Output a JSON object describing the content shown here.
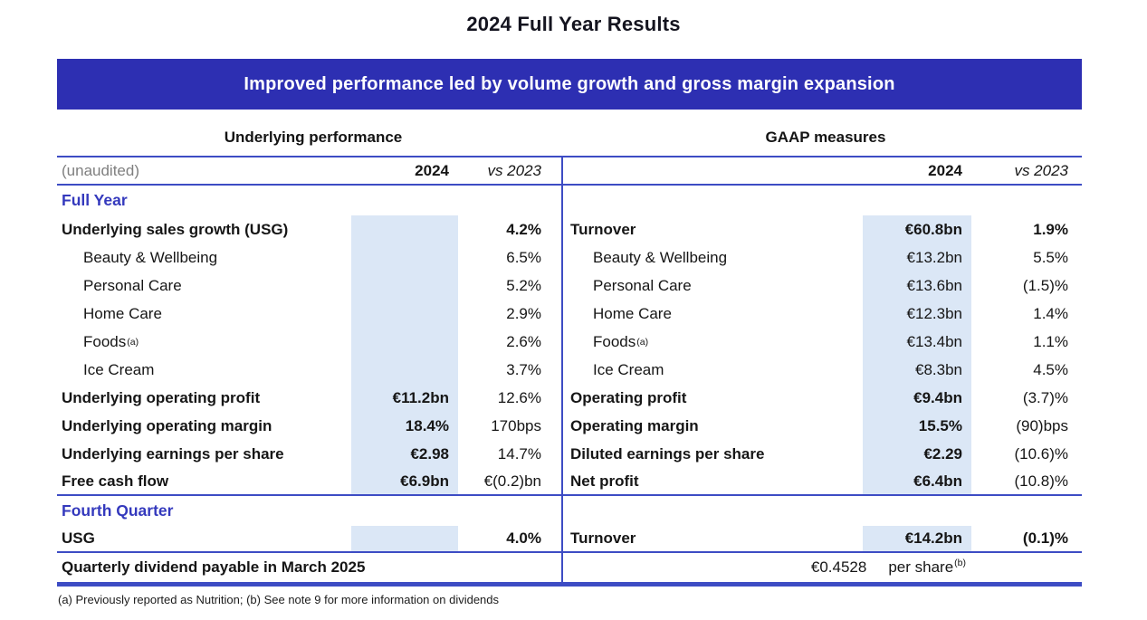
{
  "title": "2024 Full Year Results",
  "banner": {
    "text": "Improved performance led by volume growth and gross margin expansion"
  },
  "colors": {
    "banner_bg": "#2d2fb2",
    "banner_fg": "#ffffff",
    "rule_blue": "#3d4cc4",
    "section_blue": "#3439bd",
    "shade_blue": "#dbe7f6",
    "muted_gray": "#7f7f7f"
  },
  "panel_headings": {
    "left": "Underlying performance",
    "right": "GAAP measures"
  },
  "header_row": {
    "unaudited": "(unaudited)",
    "year": "2024",
    "vs": "vs 2023"
  },
  "body": [
    {
      "type": "section",
      "label": "Full Year"
    },
    {
      "type": "row",
      "shade": true,
      "left": {
        "label": "Underlying sales growth (USG)",
        "bold": true,
        "value": "",
        "change": "4.2%",
        "change_bold": true
      },
      "right": {
        "label": "Turnover",
        "bold": true,
        "value": "€60.8bn",
        "value_bold": true,
        "change": "1.9%",
        "change_bold": true
      }
    },
    {
      "type": "row",
      "shade": true,
      "left": {
        "label": "Beauty & Wellbeing",
        "indent": true,
        "value": "",
        "change": "6.5%"
      },
      "right": {
        "label": "Beauty & Wellbeing",
        "indent": true,
        "value": "€13.2bn",
        "change": "5.5%"
      }
    },
    {
      "type": "row",
      "shade": true,
      "left": {
        "label": "Personal Care",
        "indent": true,
        "value": "",
        "change": "5.2%"
      },
      "right": {
        "label": "Personal Care",
        "indent": true,
        "value": "€13.6bn",
        "change": "(1.5)%"
      }
    },
    {
      "type": "row",
      "shade": true,
      "left": {
        "label": "Home Care",
        "indent": true,
        "value": "",
        "change": "2.9%"
      },
      "right": {
        "label": "Home Care",
        "indent": true,
        "value": "€12.3bn",
        "change": "1.4%"
      }
    },
    {
      "type": "row",
      "shade": true,
      "left": {
        "label": "Foods",
        "sup": "(a)",
        "indent": true,
        "value": "",
        "change": "2.6%"
      },
      "right": {
        "label": "Foods",
        "sup": "(a)",
        "indent": true,
        "value": "€13.4bn",
        "change": "1.1%"
      }
    },
    {
      "type": "row",
      "shade": true,
      "left": {
        "label": "Ice Cream",
        "indent": true,
        "value": "",
        "change": "3.7%"
      },
      "right": {
        "label": "Ice Cream",
        "indent": true,
        "value": "€8.3bn",
        "change": "4.5%"
      }
    },
    {
      "type": "row",
      "shade": true,
      "left": {
        "label": "Underlying operating profit",
        "bold": true,
        "value": "€11.2bn",
        "value_bold": true,
        "change": "12.6%"
      },
      "right": {
        "label": "Operating profit",
        "bold": true,
        "value": "€9.4bn",
        "value_bold": true,
        "change": "(3.7)%"
      }
    },
    {
      "type": "row",
      "shade": true,
      "left": {
        "label": "Underlying operating margin",
        "bold": true,
        "value": "18.4%",
        "value_bold": true,
        "change": "170bps"
      },
      "right": {
        "label": "Operating margin",
        "bold": true,
        "value": "15.5%",
        "value_bold": true,
        "change": "(90)bps"
      }
    },
    {
      "type": "row",
      "shade": true,
      "left": {
        "label": "Underlying earnings per share",
        "bold": true,
        "value": "€2.98",
        "value_bold": true,
        "change": "14.7%"
      },
      "right": {
        "label": "Diluted earnings per share",
        "bold": true,
        "value": "€2.29",
        "value_bold": true,
        "change": "(10.6)%"
      }
    },
    {
      "type": "row",
      "shade": true,
      "rule_below": true,
      "left": {
        "label": "Free cash flow",
        "bold": true,
        "value": "€6.9bn",
        "value_bold": true,
        "change": "€(0.2)bn"
      },
      "right": {
        "label": "Net profit",
        "bold": true,
        "value": "€6.4bn",
        "value_bold": true,
        "change": "(10.8)%"
      }
    },
    {
      "type": "section",
      "label": "Fourth Quarter"
    },
    {
      "type": "row",
      "shade": true,
      "rule_below": true,
      "quarter": true,
      "left": {
        "label": "USG",
        "bold": true,
        "value": "",
        "change": "4.0%",
        "change_bold": true
      },
      "right": {
        "label": "Turnover",
        "bold": true,
        "value": "€14.2bn",
        "value_bold": true,
        "change": "(0.1)%",
        "change_bold": true
      }
    }
  ],
  "dividend_row": {
    "label": "Quarterly dividend payable in March 2025",
    "amount": "€0.4528",
    "unit": "per share",
    "sup": "(b)"
  },
  "footnote": "(a) Previously reported as Nutrition; (b) See note 9 for more information on dividends"
}
